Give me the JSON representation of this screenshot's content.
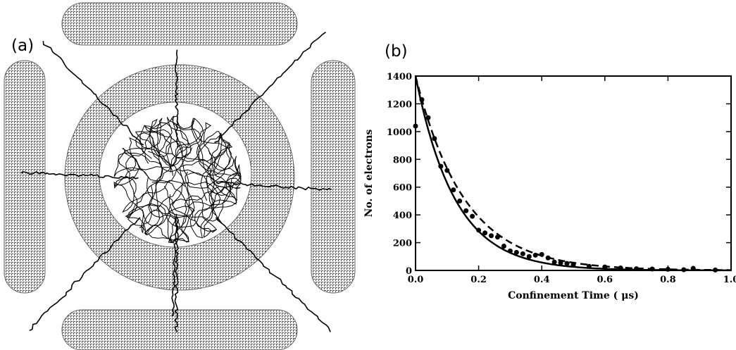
{
  "panels": {
    "a": "(a)",
    "b": "(b)"
  },
  "colors": {
    "ink": "#000000",
    "electrode": "#555555",
    "background": "#ffffff"
  },
  "chart_data": {
    "type": "scatter",
    "xlabel": "Confinement Time ( μs)",
    "ylabel": "No. of electrons",
    "xlim": [
      0.0,
      1.0
    ],
    "ylim": [
      0,
      1400
    ],
    "xticks": [
      "0.0",
      "0.2",
      "0.4",
      "0.6",
      "0.8",
      "1.0"
    ],
    "yticks": [
      "0",
      "200",
      "400",
      "600",
      "800",
      "1000",
      "1200",
      "1400"
    ],
    "grid": false,
    "series": [
      {
        "style": "points",
        "x": [
          0.0,
          0.02,
          0.04,
          0.06,
          0.08,
          0.1,
          0.12,
          0.14,
          0.16,
          0.18,
          0.2,
          0.22,
          0.24,
          0.26,
          0.28,
          0.3,
          0.32,
          0.34,
          0.36,
          0.38,
          0.4,
          0.42,
          0.44,
          0.46,
          0.48,
          0.5,
          0.55,
          0.6,
          0.65,
          0.7,
          0.75,
          0.8,
          0.85,
          0.88,
          0.95
        ],
        "y": [
          1040,
          1230,
          1100,
          950,
          750,
          720,
          580,
          500,
          430,
          390,
          290,
          270,
          250,
          240,
          175,
          140,
          130,
          120,
          100,
          110,
          115,
          90,
          60,
          55,
          50,
          40,
          30,
          25,
          18,
          12,
          10,
          8,
          5,
          15,
          3
        ]
      },
      {
        "style": "solid",
        "model": "exponential",
        "y0": 1400,
        "tau": 0.125
      },
      {
        "style": "dashed",
        "model": "exponential",
        "y0": 1400,
        "tau": 0.155
      }
    ]
  }
}
